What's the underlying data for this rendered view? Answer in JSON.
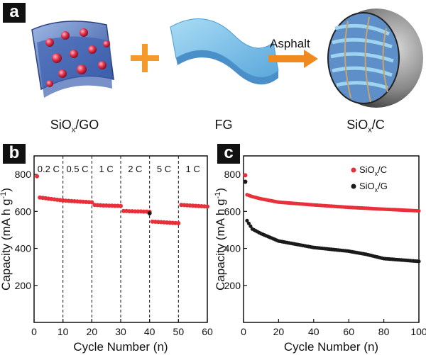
{
  "panels": {
    "a": {
      "tag": "a",
      "captions": {
        "left_main": "SiO",
        "left_sub": "x",
        "left_tail": "/GO",
        "middle": "FG",
        "right_main": "SiO",
        "right_sub": "x",
        "right_tail": "/C"
      },
      "arrow_label": "Asphalt"
    },
    "b": {
      "tag": "b"
    },
    "c": {
      "tag": "c"
    }
  },
  "colors": {
    "red": "#e8303a",
    "black": "#1a1a1a",
    "plus": "#f39a2b",
    "arrow": "#f08a1e",
    "fg_blue": "#7ec2ea",
    "sheet_blue": "#5a7fc4"
  },
  "chart_data": [
    {
      "type": "scatter",
      "panel": "b",
      "title": "",
      "xlabel": "Cycle Number (n)",
      "ylabel": "Capacity (mA h g⁻¹)",
      "xlim": [
        0,
        60
      ],
      "ylim": [
        0,
        900
      ],
      "xticks": [
        0,
        10,
        20,
        30,
        40,
        50,
        60
      ],
      "yticks": [
        200,
        400,
        600,
        800
      ],
      "rate_segments": [
        {
          "label": "0.2 C",
          "from": 0,
          "to": 10
        },
        {
          "label": "0.5 C",
          "from": 10,
          "to": 20
        },
        {
          "label": "1 C",
          "from": 20,
          "to": 30
        },
        {
          "label": "2 C",
          "from": 30,
          "to": 40
        },
        {
          "label": "5 C",
          "from": 40,
          "to": 50
        },
        {
          "label": "1 C",
          "from": 50,
          "to": 60
        }
      ],
      "series": [
        {
          "color": "#e8303a",
          "x": [
            1,
            2,
            3,
            4,
            5,
            6,
            7,
            8,
            9,
            10,
            11,
            12,
            13,
            14,
            15,
            16,
            17,
            18,
            19,
            20,
            21,
            22,
            23,
            24,
            25,
            26,
            27,
            28,
            29,
            30,
            31,
            32,
            33,
            34,
            35,
            36,
            37,
            38,
            39,
            40,
            41,
            42,
            43,
            44,
            45,
            46,
            47,
            48,
            49,
            50,
            51,
            52,
            53,
            54,
            55,
            56,
            57,
            58,
            59,
            60
          ],
          "y": [
            790,
            675,
            673,
            671,
            669,
            667,
            665,
            663,
            661,
            659,
            658,
            657,
            656,
            655,
            654,
            653,
            652,
            651,
            650,
            649,
            635,
            634,
            633,
            632,
            632,
            631,
            631,
            630,
            630,
            629,
            602,
            602,
            601,
            601,
            600,
            600,
            600,
            599,
            599,
            598,
            545,
            544,
            543,
            542,
            541,
            540,
            539,
            538,
            537,
            536,
            635,
            634,
            633,
            632,
            631,
            630,
            629,
            628,
            627,
            626
          ]
        }
      ],
      "highlighted_points": [
        {
          "x": 40,
          "y": 590,
          "color": "#1a1a1a"
        }
      ]
    },
    {
      "type": "scatter",
      "panel": "c",
      "title": "",
      "xlabel": "Cycle Number (n)",
      "ylabel": "Capacity (mA h g⁻¹)",
      "xlim": [
        0,
        100
      ],
      "ylim": [
        0,
        900
      ],
      "xticks": [
        0,
        20,
        40,
        60,
        80,
        100
      ],
      "yticks": [
        200,
        400,
        600,
        800
      ],
      "legend": {
        "position": "top-right"
      },
      "series": [
        {
          "name_main": "SiO",
          "name_sub": "x",
          "name_tail": "/C",
          "color": "#e8303a",
          "x_start": 1,
          "x_end": 100,
          "first_point": 795,
          "anchors": [
            [
              2,
              690
            ],
            [
              5,
              680
            ],
            [
              10,
              668
            ],
            [
              20,
              650
            ],
            [
              40,
              635
            ],
            [
              60,
              622
            ],
            [
              80,
              612
            ],
            [
              100,
              603
            ]
          ]
        },
        {
          "name_main": "SiO",
          "name_sub": "x",
          "name_tail": "/G",
          "color": "#1a1a1a",
          "x_start": 1,
          "x_end": 100,
          "first_point": 760,
          "anchors": [
            [
              2,
              550
            ],
            [
              5,
              505
            ],
            [
              10,
              480
            ],
            [
              20,
              440
            ],
            [
              40,
              405
            ],
            [
              60,
              385
            ],
            [
              70,
              368
            ],
            [
              80,
              345
            ],
            [
              100,
              330
            ]
          ]
        }
      ]
    }
  ]
}
